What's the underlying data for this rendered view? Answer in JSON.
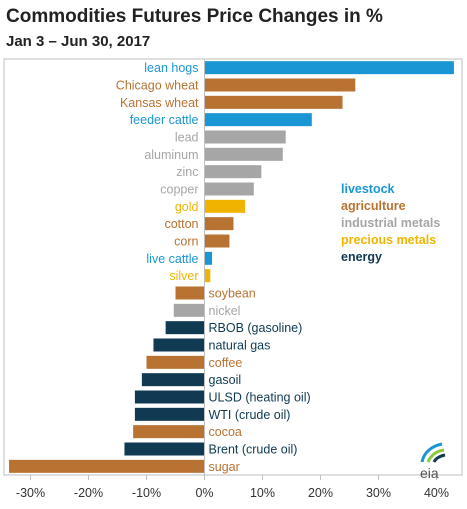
{
  "title": "Commodities Futures Price Changes in %",
  "subtitle": "Jan 3 – Jun 30, 2017",
  "logo_text": "eia",
  "colors": {
    "livestock": "#1b96d4",
    "agriculture": "#b87333",
    "industrial metals": "#a6a6a6",
    "precious metals": "#f0b400",
    "energy": "#0f3a52"
  },
  "chart_data": {
    "type": "bar",
    "orientation": "horizontal",
    "xlim": [
      -33,
      44
    ],
    "xticks": [
      -30,
      -20,
      -10,
      0,
      10,
      20,
      30,
      40
    ],
    "xtick_labels": [
      "-30%",
      "-20%",
      "-10%",
      "0%",
      "10%",
      "20%",
      "30%",
      "40%"
    ],
    "grid": false,
    "legend_position": "right",
    "legend": [
      "livestock",
      "agriculture",
      "industrial metals",
      "precious metals",
      "energy"
    ],
    "bars": [
      {
        "label": "lean hogs",
        "value": 43.0,
        "group": "livestock"
      },
      {
        "label": "Chicago wheat",
        "value": 26.0,
        "group": "agriculture"
      },
      {
        "label": "Kansas wheat",
        "value": 23.8,
        "group": "agriculture"
      },
      {
        "label": "feeder cattle",
        "value": 18.5,
        "group": "livestock"
      },
      {
        "label": "lead",
        "value": 14.0,
        "group": "industrial metals"
      },
      {
        "label": "aluminum",
        "value": 13.5,
        "group": "industrial metals"
      },
      {
        "label": "zinc",
        "value": 9.8,
        "group": "industrial metals"
      },
      {
        "label": "copper",
        "value": 8.5,
        "group": "industrial metals"
      },
      {
        "label": "gold",
        "value": 7.0,
        "group": "precious metals"
      },
      {
        "label": "cotton",
        "value": 5.0,
        "group": "agriculture"
      },
      {
        "label": "corn",
        "value": 4.3,
        "group": "agriculture"
      },
      {
        "label": "live cattle",
        "value": 1.3,
        "group": "livestock"
      },
      {
        "label": "silver",
        "value": 1.0,
        "group": "precious metals"
      },
      {
        "label": "soybean",
        "value": -5.0,
        "group": "agriculture"
      },
      {
        "label": "nickel",
        "value": -5.3,
        "group": "industrial metals"
      },
      {
        "label": "RBOB (gasoline)",
        "value": -6.7,
        "group": "energy"
      },
      {
        "label": "natural gas",
        "value": -8.8,
        "group": "energy"
      },
      {
        "label": "coffee",
        "value": -10.0,
        "group": "agriculture"
      },
      {
        "label": "gasoil",
        "value": -10.8,
        "group": "energy"
      },
      {
        "label": "ULSD (heating oil)",
        "value": -12.0,
        "group": "energy"
      },
      {
        "label": "WTI (crude oil)",
        "value": -12.0,
        "group": "energy"
      },
      {
        "label": "cocoa",
        "value": -12.3,
        "group": "agriculture"
      },
      {
        "label": "Brent (crude oil)",
        "value": -13.8,
        "group": "energy"
      },
      {
        "label": "sugar",
        "value": -33.7,
        "group": "agriculture"
      }
    ]
  }
}
